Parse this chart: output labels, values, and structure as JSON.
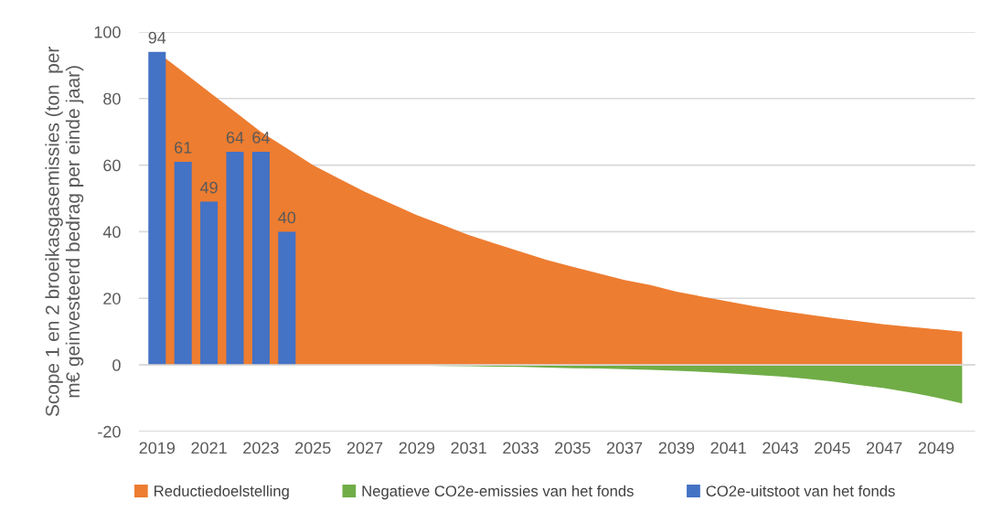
{
  "chart_data": {
    "type": "area",
    "ylabel": "Scope 1 en 2 broeikasgasemissies (ton  per\nm€ geinvesteerd bedrag per einde jaar)",
    "categories": [
      "2019",
      null,
      "2021",
      null,
      "2023",
      null,
      "2025",
      null,
      "2027",
      null,
      "2029",
      null,
      "2031",
      null,
      "2033",
      null,
      "2035",
      null,
      "2037",
      null,
      "2039",
      null,
      "2041",
      null,
      "2043",
      null,
      "2045",
      null,
      "2047",
      null,
      "2049",
      null
    ],
    "series": [
      {
        "name": "Reductiedoelstelling",
        "color": "#ed7d31",
        "values": [
          94,
          88,
          82,
          76,
          70,
          65,
          60,
          56,
          52,
          48.5,
          45,
          42,
          39,
          36.5,
          34,
          31.5,
          29.5,
          27.5,
          25.5,
          24,
          22,
          20.5,
          19,
          17.6,
          16.3,
          15.2,
          14.1,
          13.1,
          12.2,
          11.4,
          10.7,
          10.0
        ]
      },
      {
        "name": "Negatieve CO2e-emissies van het fonds",
        "color": "#70ad47",
        "values": [
          null,
          null,
          null,
          null,
          null,
          null,
          0,
          0,
          -0.1,
          -0.1,
          -0.2,
          -0.3,
          -0.4,
          -0.5,
          -0.6,
          -0.8,
          -1.0,
          -1.1,
          -1.3,
          -1.5,
          -1.8,
          -2.1,
          -2.5,
          -3.0,
          -3.5,
          -4.2,
          -5.0,
          -6.0,
          -7.0,
          -8.3,
          -9.8,
          -11.6
        ]
      },
      {
        "name": "CO2e-uitstoot van het fonds",
        "type": "bar",
        "color": "#4472c4",
        "values": [
          94,
          61,
          49,
          64,
          64,
          40,
          null,
          null,
          null,
          null,
          null,
          null,
          null,
          null,
          null,
          null,
          null,
          null,
          null,
          null,
          null,
          null,
          null,
          null,
          null,
          null,
          null,
          null,
          null,
          null,
          null,
          null
        ],
        "value_labels": [
          "94",
          "61",
          "49",
          "64",
          "64",
          "40",
          null,
          null,
          null,
          null,
          null,
          null,
          null,
          null,
          null,
          null,
          null,
          null,
          null,
          null,
          null,
          null,
          null,
          null,
          null,
          null,
          null,
          null,
          null,
          null,
          null,
          null
        ]
      }
    ],
    "ylim": [
      -20,
      100
    ],
    "yticks": [
      -20,
      0,
      20,
      40,
      60,
      80,
      100
    ],
    "grid": "y",
    "legend": "bottom"
  }
}
